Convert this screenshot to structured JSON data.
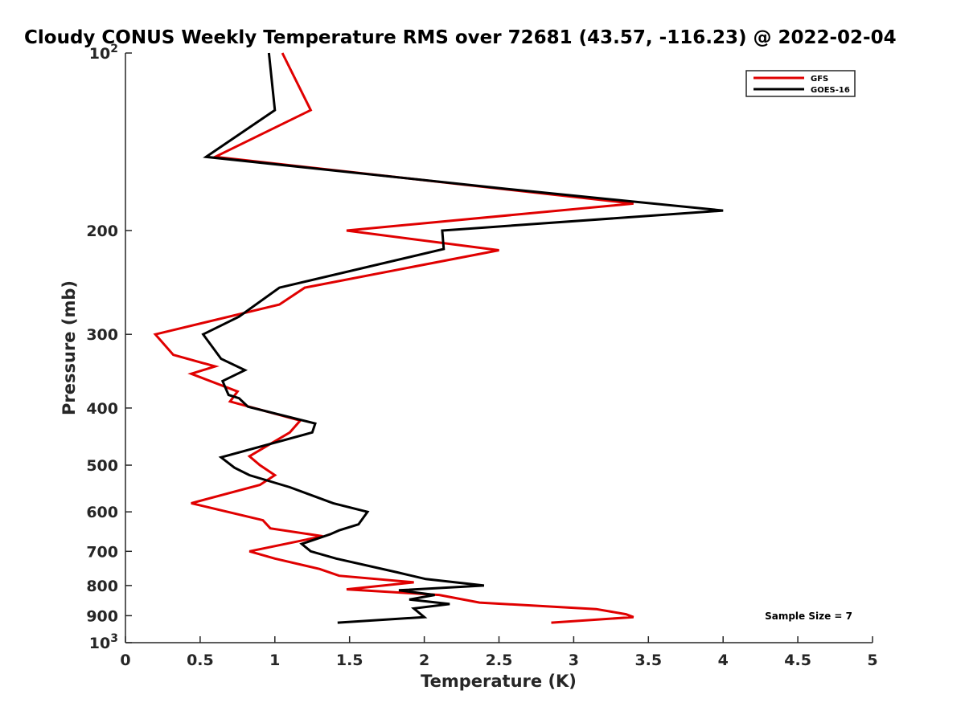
{
  "chart_data": {
    "type": "line",
    "title": "Cloudy CONUS Weekly Temperature RMS over 72681 (43.57, -116.23) @ 2022-02-04",
    "xlabel": "Temperature (K)",
    "ylabel": "Pressure (mb)",
    "xlim": [
      0,
      5
    ],
    "ylim": [
      1000,
      100
    ],
    "y_scale": "log",
    "y_reversed": true,
    "x_ticks": [
      "0",
      "0.5",
      "1",
      "1.5",
      "2",
      "2.5",
      "3",
      "3.5",
      "4",
      "4.5",
      "5"
    ],
    "y_tick_values": [
      100,
      200,
      300,
      400,
      500,
      600,
      700,
      800,
      900,
      1000
    ],
    "y_ticks": [
      {
        "base": "10",
        "exp": "2"
      },
      {
        "text": "200"
      },
      {
        "text": "300"
      },
      {
        "text": "400"
      },
      {
        "text": "500"
      },
      {
        "text": "600"
      },
      {
        "text": "700"
      },
      {
        "text": "800"
      },
      {
        "text": "900"
      },
      {
        "base": "10",
        "exp": "3"
      }
    ],
    "legend_position": "top-right",
    "grid": false,
    "annotation": "Sample Size = 7",
    "series": [
      {
        "name": "GFS",
        "color": "#e00000",
        "points": [
          [
            1.05,
            100
          ],
          [
            1.24,
            125
          ],
          [
            0.6,
            150
          ],
          [
            3.4,
            180
          ],
          [
            1.48,
            200
          ],
          [
            2.5,
            216
          ],
          [
            1.2,
            250
          ],
          [
            1.03,
            267
          ],
          [
            0.2,
            300
          ],
          [
            0.32,
            325
          ],
          [
            0.6,
            340
          ],
          [
            0.44,
            350
          ],
          [
            0.75,
            375
          ],
          [
            0.7,
            390
          ],
          [
            1.17,
            420
          ],
          [
            1.1,
            440
          ],
          [
            0.83,
            483
          ],
          [
            0.9,
            500
          ],
          [
            1.0,
            520
          ],
          [
            0.9,
            540
          ],
          [
            0.44,
            580
          ],
          [
            0.92,
            620
          ],
          [
            0.97,
            640
          ],
          [
            1.32,
            660
          ],
          [
            0.83,
            700
          ],
          [
            1.0,
            720
          ],
          [
            1.3,
            750
          ],
          [
            1.43,
            770
          ],
          [
            1.93,
            790
          ],
          [
            1.48,
            812
          ],
          [
            2.1,
            830
          ],
          [
            2.37,
            855
          ],
          [
            3.15,
            877
          ],
          [
            3.35,
            895
          ],
          [
            3.4,
            905
          ],
          [
            2.85,
            925
          ]
        ]
      },
      {
        "name": "GOES-16",
        "color": "#000000",
        "points": [
          [
            0.96,
            100
          ],
          [
            1.0,
            125
          ],
          [
            0.54,
            150
          ],
          [
            2.55,
            170
          ],
          [
            4.0,
            185
          ],
          [
            2.12,
            200
          ],
          [
            2.13,
            215
          ],
          [
            1.03,
            250
          ],
          [
            0.76,
            280
          ],
          [
            0.52,
            300
          ],
          [
            0.64,
            330
          ],
          [
            0.8,
            345
          ],
          [
            0.65,
            360
          ],
          [
            0.67,
            370
          ],
          [
            0.69,
            380
          ],
          [
            0.76,
            385
          ],
          [
            0.82,
            398
          ],
          [
            1.27,
            425
          ],
          [
            1.25,
            440
          ],
          [
            0.64,
            485
          ],
          [
            0.73,
            505
          ],
          [
            0.83,
            520
          ],
          [
            1.1,
            545
          ],
          [
            1.39,
            580
          ],
          [
            1.62,
            600
          ],
          [
            1.56,
            630
          ],
          [
            1.43,
            645
          ],
          [
            1.37,
            655
          ],
          [
            1.18,
            680
          ],
          [
            1.24,
            700
          ],
          [
            1.41,
            720
          ],
          [
            1.82,
            760
          ],
          [
            2.01,
            780
          ],
          [
            2.4,
            800
          ],
          [
            1.83,
            815
          ],
          [
            2.07,
            830
          ],
          [
            1.9,
            845
          ],
          [
            2.17,
            860
          ],
          [
            1.93,
            875
          ],
          [
            2.0,
            905
          ],
          [
            1.42,
            925
          ]
        ]
      }
    ]
  }
}
